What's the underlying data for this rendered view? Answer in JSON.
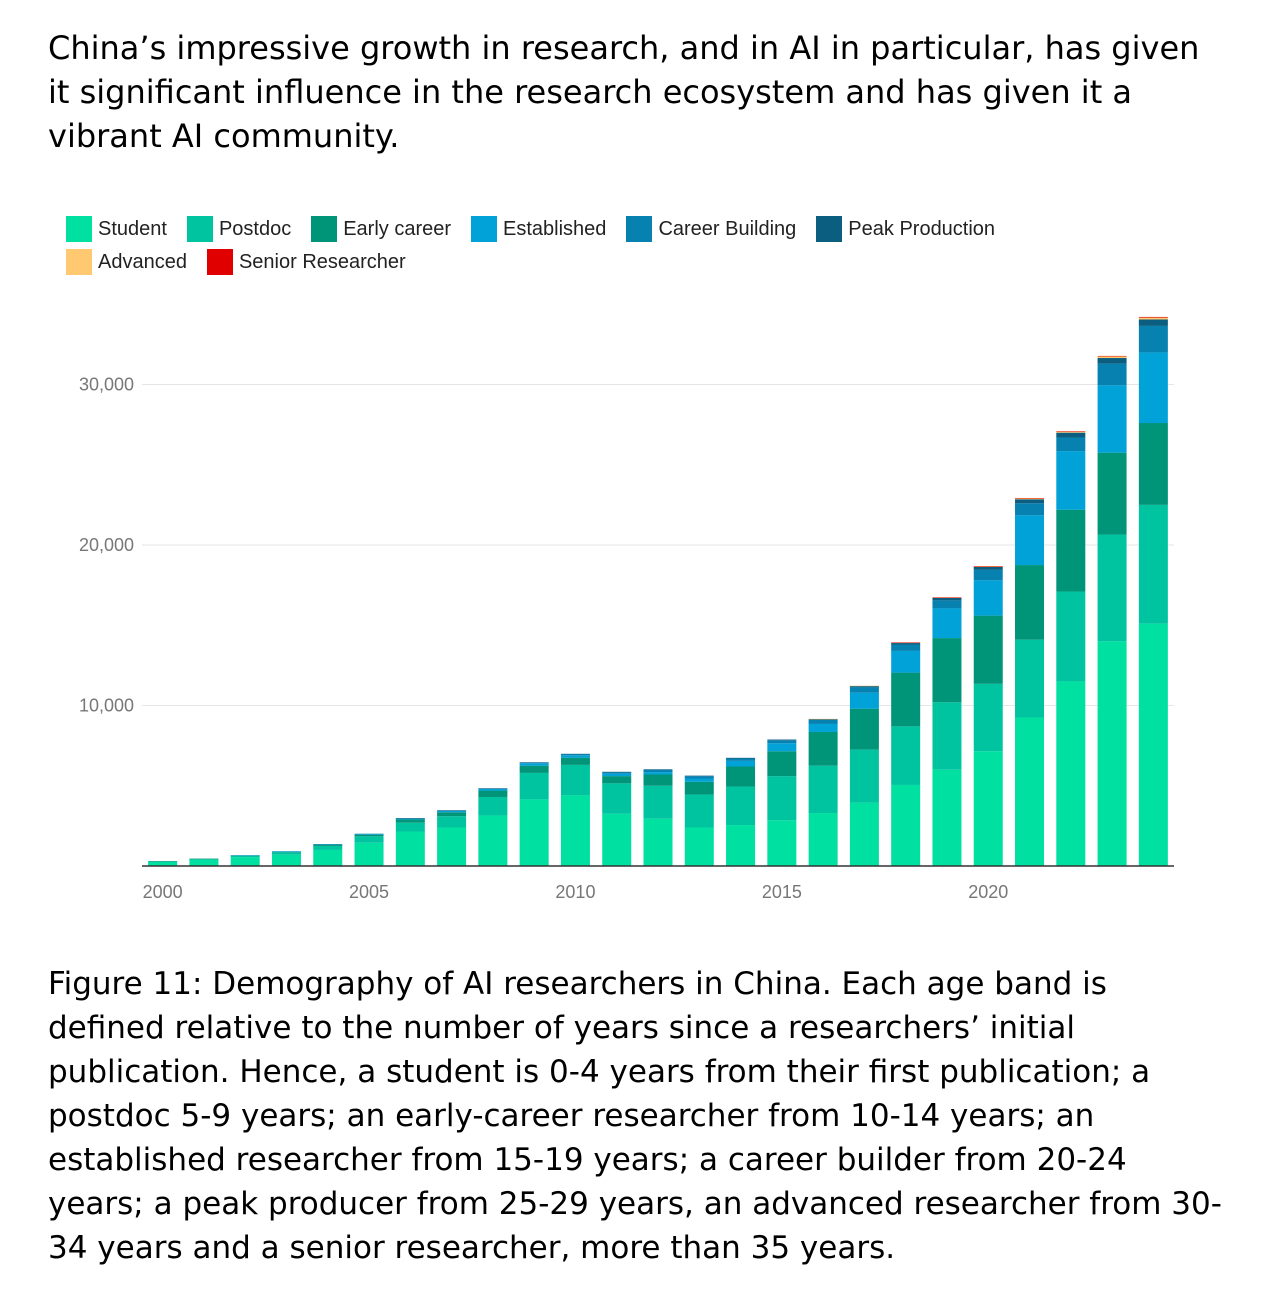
{
  "intro_text": "China’s impressive growth in research, and in AI in particular, has given it significant influence in the research ecosystem and has given it a vibrant AI community.",
  "caption_text": "Figure 11: Demography of AI researchers in China. Each age band is defined relative to the number of years since a researchers’ initial publication. Hence, a student is 0-4 years from their first publication; a postdoc 5-9 years; an early-career researcher from 10-14 years; an established researcher from 15-19 years; a career builder from 20-24 years; a peak producer from 25-29 years, an advanced researcher from 30-34 years and a senior researcher, more than 35 years.",
  "chart_data": {
    "type": "bar",
    "stacked": true,
    "title": "",
    "xlabel": "",
    "ylabel": "",
    "ylim": [
      0,
      36000
    ],
    "yticks": [
      10000,
      20000,
      30000
    ],
    "ytick_labels": [
      "10,000",
      "20,000",
      "30,000"
    ],
    "xtick_labels": [
      "2000",
      "2005",
      "2010",
      "2015",
      "2020"
    ],
    "xtick_years": [
      2000,
      2005,
      2010,
      2015,
      2020
    ],
    "legend_position": "top-left",
    "categories": [
      2000,
      2001,
      2002,
      2003,
      2004,
      2005,
      2006,
      2007,
      2008,
      2009,
      2010,
      2011,
      2012,
      2013,
      2014,
      2015,
      2016,
      2017,
      2018,
      2019,
      2020,
      2021,
      2022,
      2023,
      2024
    ],
    "series": [
      {
        "name": "Student",
        "color": "#00e0a0",
        "values": [
          250,
          380,
          550,
          700,
          1000,
          1450,
          2150,
          2400,
          3150,
          4150,
          4400,
          3250,
          2950,
          2400,
          2550,
          2850,
          3300,
          3950,
          5050,
          6000,
          7150,
          9250,
          11500,
          14000,
          15100
        ]
      },
      {
        "name": "Postdoc",
        "color": "#00c4a0",
        "values": [
          40,
          60,
          80,
          150,
          250,
          400,
          550,
          700,
          1150,
          1650,
          1900,
          1900,
          2050,
          2050,
          2400,
          2750,
          2950,
          3300,
          3650,
          4200,
          4200,
          4850,
          5600,
          6650,
          7400
        ]
      },
      {
        "name": "Early career",
        "color": "#009478",
        "values": [
          10,
          20,
          30,
          50,
          80,
          100,
          200,
          250,
          400,
          450,
          450,
          450,
          700,
          800,
          1250,
          1550,
          2100,
          2550,
          3350,
          4000,
          4250,
          4650,
          5100,
          5100,
          5100
        ]
      },
      {
        "name": "Established",
        "color": "#00a2d8",
        "values": [
          0,
          0,
          10,
          20,
          30,
          50,
          50,
          80,
          100,
          150,
          150,
          150,
          150,
          200,
          350,
          500,
          500,
          1000,
          1350,
          1850,
          2200,
          3100,
          3650,
          4200,
          4400
        ]
      },
      {
        "name": "Career Building",
        "color": "#0782b0",
        "values": [
          0,
          0,
          0,
          0,
          10,
          10,
          20,
          30,
          30,
          50,
          70,
          100,
          150,
          150,
          150,
          180,
          250,
          350,
          400,
          500,
          650,
          750,
          850,
          1350,
          1650
        ]
      },
      {
        "name": "Peak Production",
        "color": "#0b5e80",
        "values": [
          0,
          0,
          0,
          0,
          0,
          0,
          10,
          10,
          10,
          10,
          20,
          20,
          30,
          30,
          40,
          50,
          60,
          70,
          100,
          150,
          180,
          250,
          300,
          350,
          400
        ]
      },
      {
        "name": "Advanced",
        "color": "#ffc972",
        "values": [
          0,
          0,
          0,
          0,
          0,
          0,
          0,
          0,
          0,
          0,
          0,
          0,
          0,
          0,
          0,
          0,
          10,
          10,
          20,
          30,
          50,
          60,
          70,
          100,
          120
        ]
      },
      {
        "name": "Senior Researcher",
        "color": "#e00000",
        "values": [
          0,
          0,
          0,
          0,
          0,
          0,
          0,
          0,
          0,
          0,
          0,
          0,
          0,
          0,
          0,
          0,
          0,
          0,
          10,
          10,
          10,
          20,
          20,
          30,
          40
        ]
      }
    ]
  }
}
